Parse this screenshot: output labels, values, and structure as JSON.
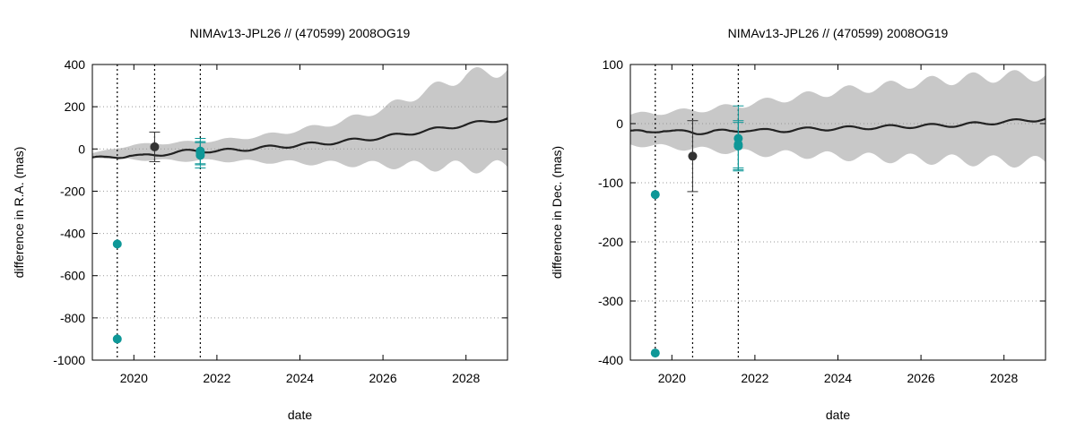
{
  "chart_data": [
    {
      "type": "line",
      "title": "NIMAv13-JPL26 // (470599) 2008OG19",
      "xlabel": "date",
      "ylabel": "difference in R.A. (mas)",
      "xlim": [
        2019.0,
        2029.0
      ],
      "ylim": [
        -1000,
        400
      ],
      "x_ticks": [
        2020,
        2022,
        2024,
        2026,
        2028
      ],
      "y_ticks": [
        -1000,
        -800,
        -600,
        -400,
        -200,
        0,
        200,
        400
      ],
      "grid": "horizontal-dotted",
      "vlines": [
        2019.6,
        2020.5,
        2021.6
      ],
      "uncertainty_band": {
        "x": [
          2019.0,
          2020.0,
          2021.0,
          2022.0,
          2023.0,
          2024.0,
          2025.0,
          2026.0,
          2027.0,
          2028.0,
          2029.0
        ],
        "lower": [
          -40,
          -50,
          -55,
          -55,
          -60,
          -65,
          -70,
          -75,
          -80,
          -85,
          -85
        ],
        "upper": [
          -20,
          20,
          30,
          40,
          60,
          90,
          130,
          190,
          270,
          350,
          375
        ]
      },
      "series": [
        {
          "name": "NIMAv13-JPL26",
          "x": [
            2019.0,
            2019.3,
            2019.6,
            2019.9,
            2020.2,
            2020.5,
            2020.8,
            2021.1,
            2021.4,
            2021.7,
            2022.0,
            2022.5,
            2023.0,
            2023.5,
            2024.0,
            2024.5,
            2025.0,
            2025.5,
            2026.0,
            2026.5,
            2027.0,
            2027.5,
            2028.0,
            2028.5,
            2029.0
          ],
          "y": [
            -40,
            -45,
            -38,
            -28,
            -35,
            -30,
            -20,
            -15,
            -10,
            -8,
            -10,
            -5,
            5,
            10,
            20,
            25,
            35,
            45,
            55,
            70,
            85,
            100,
            115,
            130,
            145
          ]
        }
      ],
      "observations": [
        {
          "x": 2019.6,
          "y": -450,
          "err": 0,
          "color": "#0e9797"
        },
        {
          "x": 2019.6,
          "y": -900,
          "err": 0,
          "color": "#0e9797"
        },
        {
          "x": 2020.5,
          "y": 10,
          "err": 70,
          "color": "#333333"
        },
        {
          "x": 2021.6,
          "y": -10,
          "err": 60,
          "color": "#0e9797"
        },
        {
          "x": 2021.6,
          "y": -20,
          "err": 55,
          "color": "#0e9797"
        },
        {
          "x": 2021.6,
          "y": -30,
          "err": 60,
          "color": "#0e9797"
        }
      ]
    },
    {
      "type": "line",
      "title": "NIMAv13-JPL26 // (470599) 2008OG19",
      "xlabel": "date",
      "ylabel": "difference in Dec. (mas)",
      "xlim": [
        2019.0,
        2029.0
      ],
      "ylim": [
        -400,
        100
      ],
      "x_ticks": [
        2020,
        2022,
        2024,
        2026,
        2028
      ],
      "y_ticks": [
        -400,
        -300,
        -200,
        -100,
        0,
        100
      ],
      "grid": "horizontal-dotted",
      "vlines": [
        2019.6,
        2020.5,
        2021.6
      ],
      "uncertainty_band": {
        "x": [
          2019.0,
          2020.0,
          2021.0,
          2022.0,
          2023.0,
          2024.0,
          2025.0,
          2026.0,
          2027.0,
          2028.0,
          2029.0
        ],
        "lower": [
          -35,
          -40,
          -45,
          -50,
          -52,
          -55,
          -58,
          -60,
          -62,
          -64,
          -65
        ],
        "upper": [
          15,
          20,
          25,
          35,
          45,
          55,
          62,
          70,
          76,
          80,
          82
        ]
      },
      "series": [
        {
          "name": "NIMAv13-JPL26",
          "x": [
            2019.0,
            2019.4,
            2019.8,
            2020.2,
            2020.6,
            2021.0,
            2021.4,
            2021.8,
            2022.2,
            2022.6,
            2023.0,
            2024.0,
            2025.0,
            2026.0,
            2027.0,
            2028.0,
            2029.0
          ],
          "y": [
            -12,
            -16,
            -10,
            -14,
            -16,
            -12,
            -14,
            -10,
            -12,
            -12,
            -10,
            -8,
            -6,
            -4,
            -2,
            3,
            8
          ]
        }
      ],
      "observations": [
        {
          "x": 2019.6,
          "y": -120,
          "err": 0,
          "color": "#0e9797"
        },
        {
          "x": 2019.6,
          "y": -388,
          "err": 0,
          "color": "#0e9797"
        },
        {
          "x": 2020.5,
          "y": -55,
          "err": 60,
          "color": "#333333"
        },
        {
          "x": 2021.6,
          "y": -25,
          "err": 55,
          "color": "#0e9797"
        },
        {
          "x": 2021.6,
          "y": -35,
          "err": 40,
          "color": "#0e9797"
        },
        {
          "x": 2021.6,
          "y": -38,
          "err": 40,
          "color": "#0e9797"
        }
      ]
    }
  ],
  "colors": {
    "band": "#c8c8c8",
    "line": "#222222",
    "grid": "#999999"
  }
}
